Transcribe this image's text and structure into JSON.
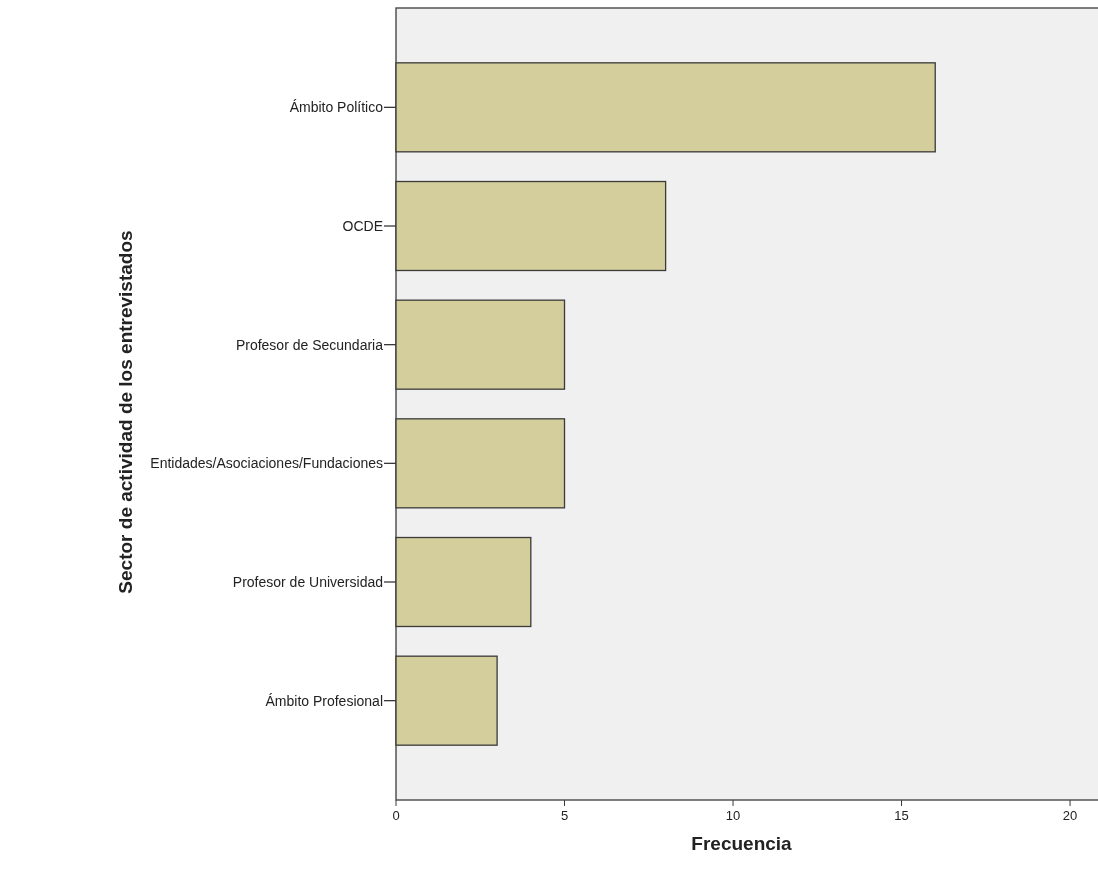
{
  "chart_data": {
    "type": "bar",
    "orientation": "horizontal",
    "xlabel": "Frecuencia",
    "ylabel": "Sector de actividad de los entrevistados",
    "categories": [
      "Ámbito Político",
      "OCDE",
      "Profesor de Secundaria",
      "Entidades/Asociaciones/Fundaciones",
      "Profesor de Universidad",
      "Ámbito Profesional"
    ],
    "values": [
      16,
      8,
      5,
      5,
      4,
      3
    ],
    "color": "#d3ce9b",
    "xlim": [
      0,
      20.8
    ],
    "xticks": [
      0,
      5,
      10,
      15,
      20
    ],
    "grid": false
  }
}
